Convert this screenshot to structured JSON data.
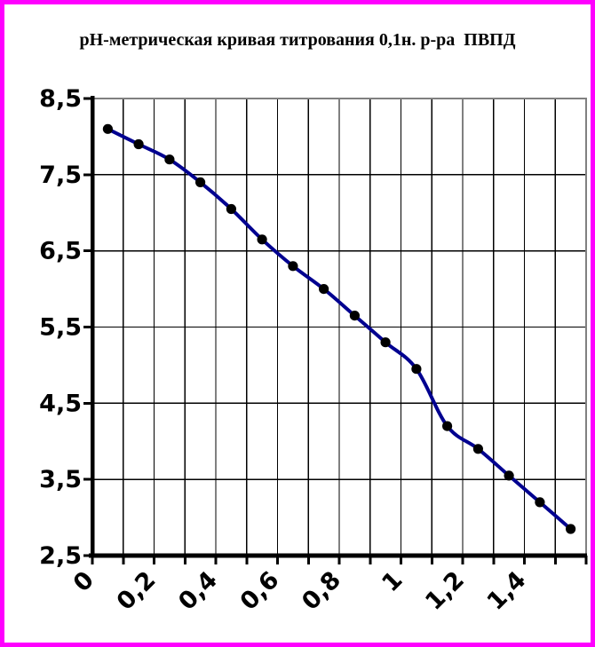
{
  "frame": {
    "border_color": "#FF00FF",
    "background_color": "#FFFFFF"
  },
  "chart_data": {
    "type": "line",
    "title": "рН-метрическая кривая титрования 0,1н. р-ра  ПВПД",
    "xlabel": "",
    "ylabel": "",
    "x": [
      0,
      0.1,
      0.2,
      0.3,
      0.4,
      0.5,
      0.6,
      0.7,
      0.8,
      0.9,
      1.0,
      1.1,
      1.2,
      1.3,
      1.4,
      1.5
    ],
    "y": [
      8.1,
      7.9,
      7.7,
      7.4,
      7.05,
      6.65,
      6.3,
      6.0,
      5.65,
      5.3,
      4.95,
      4.2,
      3.9,
      3.55,
      3.2,
      2.85
    ],
    "series_name": "pH",
    "x_tick_labels": [
      "0",
      "0,2",
      "0,4",
      "0,6",
      "0,8",
      "1",
      "1,2",
      "1,4"
    ],
    "y_tick_labels": [
      "8,5",
      "7,5",
      "6,5",
      "5,5",
      "4,5",
      "3,5",
      "2,5"
    ],
    "xlim": [
      0,
      1.6
    ],
    "ylim": [
      2.5,
      8.5
    ],
    "y_tick_step": 1.0,
    "grid": true,
    "legend": "none",
    "smooth_line": true,
    "line_color": "#000090",
    "marker": "circle",
    "marker_color": "#000000",
    "grid_color": "#000000",
    "plot_border_color": "#808080",
    "axis_color": "#000000",
    "x_label_rotation_deg": -45
  }
}
